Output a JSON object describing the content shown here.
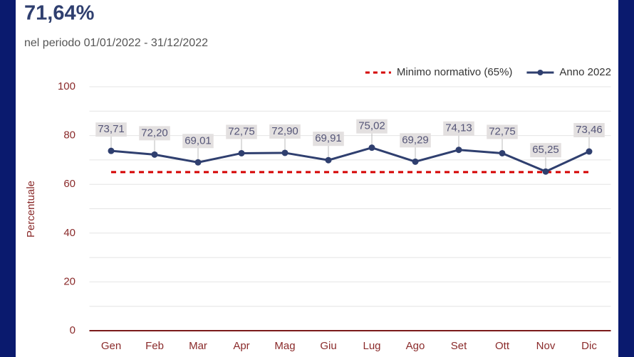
{
  "chart_data": {
    "type": "line",
    "title": "71,64%",
    "subtitle": "nel periodo 01/01/2022 - 31/12/2022",
    "y_label": "Percentuale",
    "categories": [
      "Gen",
      "Feb",
      "Mar",
      "Apr",
      "Mag",
      "Giu",
      "Lug",
      "Ago",
      "Set",
      "Ott",
      "Nov",
      "Dic"
    ],
    "series": [
      {
        "name": "Anno 2022",
        "color": "#2f3f6f",
        "values": [
          73.71,
          72.2,
          69.01,
          72.75,
          72.9,
          69.91,
          75.02,
          69.29,
          74.13,
          72.75,
          65.25,
          73.46
        ],
        "value_labels": [
          "73,71",
          "72,20",
          "69,01",
          "72,75",
          "72,90",
          "69,91",
          "75,02",
          "69,29",
          "74,13",
          "72,75",
          "65,25",
          "73,46"
        ]
      }
    ],
    "reference_lines": [
      {
        "name": "Minimo normativo (65%)",
        "value": 65,
        "color": "#d40000"
      }
    ],
    "ylim": [
      0,
      100
    ],
    "yticks": [
      0,
      20,
      40,
      60,
      80,
      100
    ],
    "minor_yticks": [
      10,
      30,
      50,
      70,
      90
    ],
    "grid": true
  }
}
